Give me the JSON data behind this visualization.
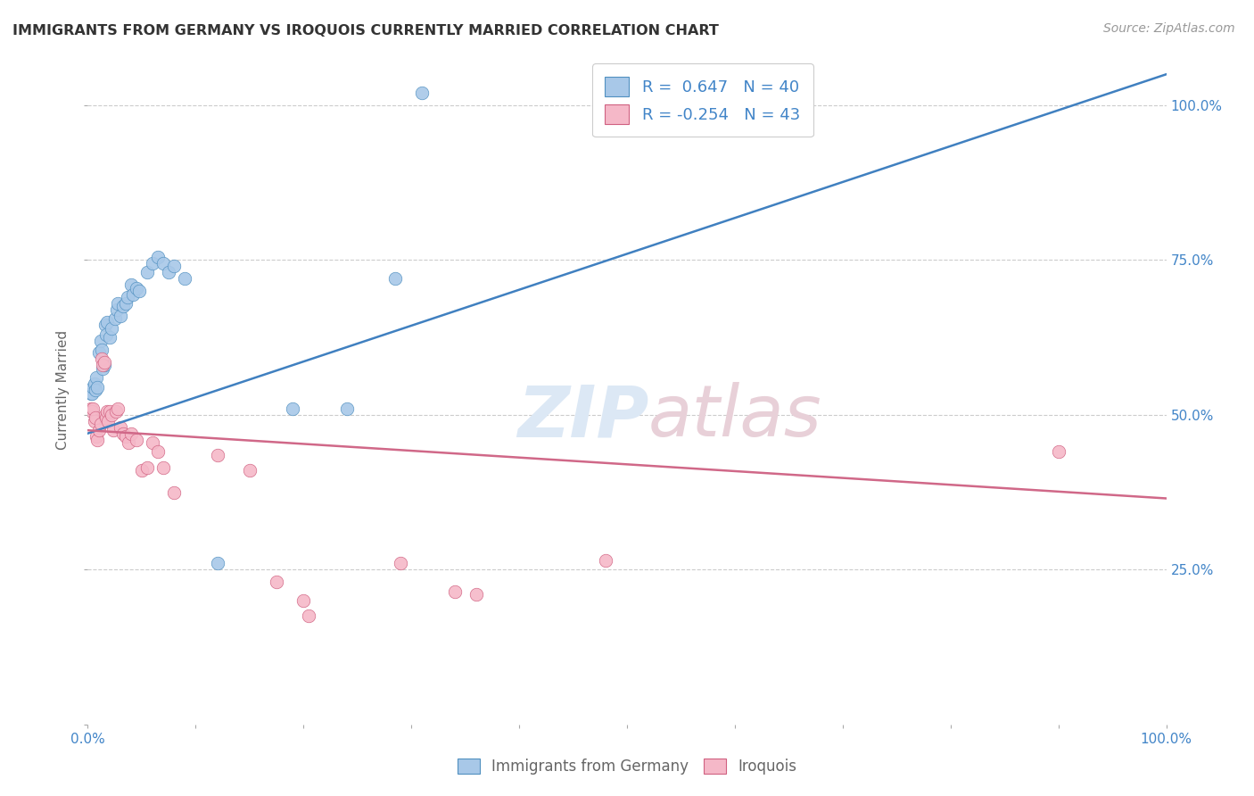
{
  "title": "IMMIGRANTS FROM GERMANY VS IROQUOIS CURRENTLY MARRIED CORRELATION CHART",
  "source": "Source: ZipAtlas.com",
  "ylabel": "Currently Married",
  "ytick_labels": [
    "",
    "25.0%",
    "50.0%",
    "75.0%",
    "100.0%"
  ],
  "ytick_positions": [
    0.0,
    0.25,
    0.5,
    0.75,
    1.0
  ],
  "xlim": [
    0.0,
    1.0
  ],
  "ylim": [
    0.0,
    1.08
  ],
  "blue_r": 0.647,
  "blue_n": 40,
  "pink_r": -0.254,
  "pink_n": 43,
  "blue_color": "#a8c8e8",
  "pink_color": "#f5b8c8",
  "blue_edge_color": "#5090c0",
  "pink_edge_color": "#d06080",
  "blue_line_color": "#4080c0",
  "pink_line_color": "#d06888",
  "watermark_color": "#dce8f5",
  "background_color": "#ffffff",
  "blue_line_x": [
    0.0,
    1.0
  ],
  "blue_line_y": [
    0.47,
    1.05
  ],
  "pink_line_x": [
    0.0,
    1.0
  ],
  "pink_line_y": [
    0.475,
    0.365
  ],
  "blue_scatter": [
    [
      0.003,
      0.535
    ],
    [
      0.004,
      0.535
    ],
    [
      0.005,
      0.545
    ],
    [
      0.006,
      0.55
    ],
    [
      0.007,
      0.54
    ],
    [
      0.008,
      0.56
    ],
    [
      0.009,
      0.545
    ],
    [
      0.01,
      0.6
    ],
    [
      0.012,
      0.62
    ],
    [
      0.013,
      0.605
    ],
    [
      0.014,
      0.575
    ],
    [
      0.015,
      0.58
    ],
    [
      0.016,
      0.645
    ],
    [
      0.017,
      0.63
    ],
    [
      0.018,
      0.65
    ],
    [
      0.02,
      0.625
    ],
    [
      0.022,
      0.64
    ],
    [
      0.025,
      0.655
    ],
    [
      0.027,
      0.67
    ],
    [
      0.028,
      0.68
    ],
    [
      0.03,
      0.66
    ],
    [
      0.033,
      0.675
    ],
    [
      0.035,
      0.68
    ],
    [
      0.037,
      0.69
    ],
    [
      0.04,
      0.71
    ],
    [
      0.042,
      0.695
    ],
    [
      0.045,
      0.705
    ],
    [
      0.048,
      0.7
    ],
    [
      0.055,
      0.73
    ],
    [
      0.06,
      0.745
    ],
    [
      0.065,
      0.755
    ],
    [
      0.07,
      0.745
    ],
    [
      0.075,
      0.73
    ],
    [
      0.08,
      0.74
    ],
    [
      0.09,
      0.72
    ],
    [
      0.12,
      0.26
    ],
    [
      0.19,
      0.51
    ],
    [
      0.24,
      0.51
    ],
    [
      0.285,
      0.72
    ],
    [
      0.31,
      1.02
    ]
  ],
  "pink_scatter": [
    [
      0.003,
      0.51
    ],
    [
      0.004,
      0.505
    ],
    [
      0.005,
      0.51
    ],
    [
      0.006,
      0.49
    ],
    [
      0.007,
      0.495
    ],
    [
      0.008,
      0.465
    ],
    [
      0.009,
      0.46
    ],
    [
      0.01,
      0.475
    ],
    [
      0.012,
      0.485
    ],
    [
      0.013,
      0.59
    ],
    [
      0.014,
      0.58
    ],
    [
      0.015,
      0.585
    ],
    [
      0.016,
      0.5
    ],
    [
      0.017,
      0.495
    ],
    [
      0.018,
      0.505
    ],
    [
      0.019,
      0.49
    ],
    [
      0.02,
      0.505
    ],
    [
      0.022,
      0.5
    ],
    [
      0.024,
      0.475
    ],
    [
      0.026,
      0.505
    ],
    [
      0.028,
      0.51
    ],
    [
      0.03,
      0.48
    ],
    [
      0.033,
      0.47
    ],
    [
      0.035,
      0.465
    ],
    [
      0.038,
      0.455
    ],
    [
      0.04,
      0.47
    ],
    [
      0.045,
      0.46
    ],
    [
      0.05,
      0.41
    ],
    [
      0.055,
      0.415
    ],
    [
      0.06,
      0.455
    ],
    [
      0.065,
      0.44
    ],
    [
      0.07,
      0.415
    ],
    [
      0.08,
      0.375
    ],
    [
      0.12,
      0.435
    ],
    [
      0.15,
      0.41
    ],
    [
      0.175,
      0.23
    ],
    [
      0.2,
      0.2
    ],
    [
      0.205,
      0.175
    ],
    [
      0.29,
      0.26
    ],
    [
      0.34,
      0.215
    ],
    [
      0.36,
      0.21
    ],
    [
      0.48,
      0.265
    ],
    [
      0.9,
      0.44
    ]
  ]
}
